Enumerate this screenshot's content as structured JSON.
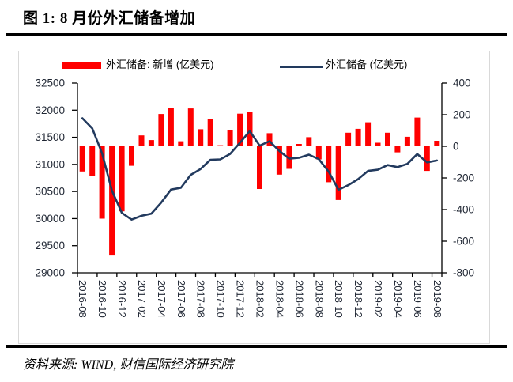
{
  "header": {
    "title": "图 1: 8 月份外汇储备增加"
  },
  "footer": {
    "source": "资料来源: WIND, 财信国际经济研究院"
  },
  "colors": {
    "bar": "#ff0000",
    "line": "#223a5e",
    "axis": "#000000",
    "tick_text": "#1f2633",
    "frame_border": "#d9d9d9",
    "rule": "#000000"
  },
  "chart_data": {
    "type": "combo",
    "title": "",
    "legend_position": "top",
    "grid": false,
    "x": [
      "2016-08",
      "2016-09",
      "2016-10",
      "2016-11",
      "2016-12",
      "2017-01",
      "2017-02",
      "2017-03",
      "2017-04",
      "2017-05",
      "2017-06",
      "2017-07",
      "2017-08",
      "2017-09",
      "2017-10",
      "2017-11",
      "2017-12",
      "2018-01",
      "2018-02",
      "2018-03",
      "2018-04",
      "2018-05",
      "2018-06",
      "2018-07",
      "2018-08",
      "2018-09",
      "2018-10",
      "2018-11",
      "2018-12",
      "2019-01",
      "2019-02",
      "2019-03",
      "2019-04",
      "2019-05",
      "2019-06",
      "2019-07",
      "2019-08"
    ],
    "x_tick_labels": [
      "2016-08",
      "2016-10",
      "2016-12",
      "2017-02",
      "2017-04",
      "2017-06",
      "2017-08",
      "2017-10",
      "2017-12",
      "2018-02",
      "2018-04",
      "2018-06",
      "2018-08",
      "2018-10",
      "2018-12",
      "2019-02",
      "2019-04",
      "2019-06",
      "2019-08"
    ],
    "series": [
      {
        "name": "外汇储备: 新增 (亿美元)",
        "type": "bar",
        "axis": "right",
        "color": "#ff0000",
        "values": [
          -158.9,
          -187.9,
          -457.3,
          -690.5,
          -410.8,
          -123.1,
          69.2,
          39.6,
          204.5,
          240.3,
          32.2,
          239.3,
          108.1,
          169.8,
          7.0,
          100.6,
          206.7,
          215.1,
          -269.8,
          83.0,
          -178.9,
          -142.7,
          15.1,
          58.2,
          -82.3,
          -226.9,
          -339.3,
          86.0,
          110.4,
          151.8,
          22.5,
          85.8,
          -38.1,
          60.6,
          182.2,
          -155.4,
          35.0
        ]
      },
      {
        "name": "外汇储备 (亿美元)",
        "type": "line",
        "axis": "left",
        "color": "#223a5e",
        "values": [
          31851.7,
          31663.8,
          31206.6,
          30516.1,
          30105.2,
          29982.0,
          30051.2,
          30090.9,
          30295.3,
          30535.7,
          30567.9,
          30807.2,
          30915.3,
          31085.1,
          31092.1,
          31192.8,
          31399.5,
          31614.6,
          31344.8,
          31427.8,
          31248.9,
          31106.2,
          31121.3,
          31179.5,
          31097.2,
          30870.3,
          30531.0,
          30617.0,
          30727.4,
          30879.2,
          30901.8,
          30987.6,
          30949.5,
          31010.1,
          31192.3,
          31037.0,
          31072.0
        ]
      }
    ],
    "left_axis": {
      "min": 29000,
      "max": 32500,
      "step": 500,
      "ticks": [
        32500,
        32000,
        31500,
        31000,
        30500,
        30000,
        29500,
        29000
      ]
    },
    "right_axis": {
      "min": -800,
      "max": 400,
      "step": 200,
      "ticks": [
        400,
        200,
        0,
        -200,
        -400,
        -600,
        -800
      ]
    }
  }
}
